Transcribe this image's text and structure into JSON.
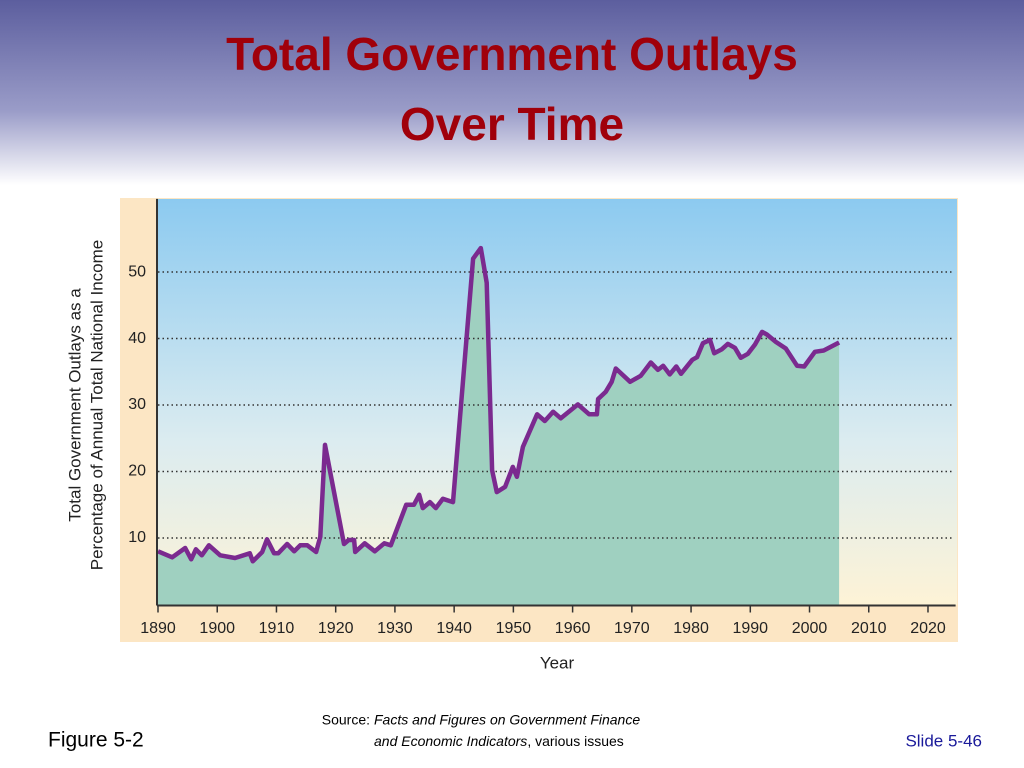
{
  "header": {
    "title": [
      "Total Government Outlays",
      "Over Time"
    ]
  },
  "chart_data": {
    "type": "area",
    "ylabel": [
      "Total Government Outlays as a",
      "Percentage of Annual Total National Income"
    ],
    "xlabel": "Year",
    "x": [
      1890,
      1892.4,
      1894.6,
      1895.6,
      1896.4,
      1897.4,
      1898.6,
      1900.5,
      1903,
      1905.5,
      1906,
      1907.6,
      1908.4,
      1909.6,
      1910.3,
      1911.8,
      1913,
      1914,
      1915.2,
      1916.7,
      1917.4,
      1918.2,
      1921.4,
      1922.2,
      1923.1,
      1923.3,
      1924.9,
      1926.6,
      1928.2,
      1929.3,
      1931.9,
      1933.2,
      1934.1,
      1934.7,
      1935.9,
      1936.9,
      1938.1,
      1939.8,
      1943.2,
      1944.5,
      1945.5,
      1946.4,
      1947.2,
      1948.6,
      1949.9,
      1950.6,
      1951.6,
      1954,
      1955.3,
      1956.7,
      1958,
      1960.9,
      1962.8,
      1964.1,
      1964.3,
      1965.6,
      1966.6,
      1967.3,
      1969.7,
      1971.5,
      1973.2,
      1974.4,
      1975.3,
      1976.4,
      1977.5,
      1978.3,
      1980.2,
      1981,
      1982,
      1983.2,
      1983.9,
      1985.2,
      1986.2,
      1987.4,
      1988.4,
      1989.6,
      1990.8,
      1992,
      1992.8,
      1994.3,
      1996,
      1997.9,
      1999.1,
      2000.9,
      2002.4,
      2005
    ],
    "series": [
      {
        "color": "#7b2a8f",
        "fill": "#9fd0c0",
        "values": [
          8.0,
          7.1,
          8.5,
          6.8,
          8.3,
          7.4,
          8.9,
          7.4,
          7.0,
          7.7,
          6.5,
          7.9,
          9.8,
          7.7,
          7.7,
          9.1,
          8.0,
          8.9,
          8.9,
          7.9,
          10.2,
          24.0,
          9.1,
          9.7,
          9.7,
          7.9,
          9.2,
          8.0,
          9.2,
          8.9,
          15.0,
          15.0,
          16.5,
          14.5,
          15.4,
          14.5,
          15.9,
          15.4,
          52.0,
          53.6,
          48.4,
          20.2,
          16.9,
          17.7,
          20.7,
          19.2,
          23.7,
          28.6,
          27.6,
          29.0,
          28.0,
          30.1,
          28.6,
          28.6,
          30.9,
          32.0,
          33.5,
          35.5,
          33.5,
          34.4,
          36.4,
          35.3,
          35.9,
          34.6,
          35.8,
          34.7,
          36.8,
          37.2,
          39.3,
          39.8,
          37.8,
          38.4,
          39.2,
          38.6,
          37.1,
          37.7,
          39.1,
          41.0,
          40.6,
          39.5,
          38.5,
          35.9,
          35.8,
          38.0,
          38.2,
          39.4
        ]
      }
    ],
    "xlim": [
      1890,
      2025
    ],
    "xticks": [
      1890,
      1900,
      1910,
      1920,
      1930,
      1940,
      1950,
      1960,
      1970,
      1980,
      1990,
      2000,
      2010,
      2020
    ],
    "ylim": [
      0,
      61
    ],
    "yticks": [
      10,
      20,
      30,
      40,
      50
    ],
    "grid": true
  },
  "footer": {
    "figure": "Figure 5-2",
    "source_prefix": "Source:",
    "source_title": [
      "Facts and Figures on Government Finance",
      "and Economic Indicators"
    ],
    "source_suffix": ", various issues",
    "slide": "Slide 5-46"
  }
}
